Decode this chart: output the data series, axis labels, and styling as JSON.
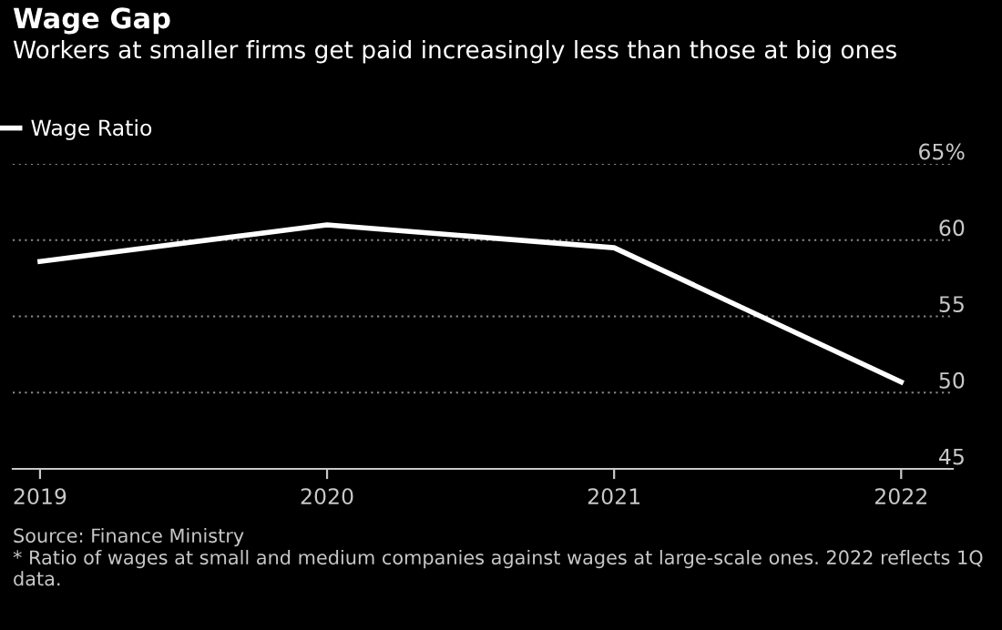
{
  "chart_data": {
    "type": "line",
    "title": "Wage Gap",
    "subtitle": "Workers at smaller firms get paid increasingly less than those at big ones",
    "categories": [
      "2019",
      "2020",
      "2021",
      "2022"
    ],
    "series": [
      {
        "name": "Wage Ratio",
        "color": "#ffffff",
        "values": [
          58.6,
          61.0,
          59.5,
          50.7
        ]
      }
    ],
    "ylim": [
      45,
      65
    ],
    "yticks": [
      45,
      50,
      55,
      60,
      {
        "value": 65,
        "label": "65%"
      }
    ],
    "grid": "y",
    "legend": "top left",
    "marker": "none",
    "line_style": "solid",
    "annotations": [
      "Source: Finance Ministry",
      "* Ratio of wages at small and medium companies against wages at large-scale ones. 2022 reflects 1Q data."
    ]
  }
}
